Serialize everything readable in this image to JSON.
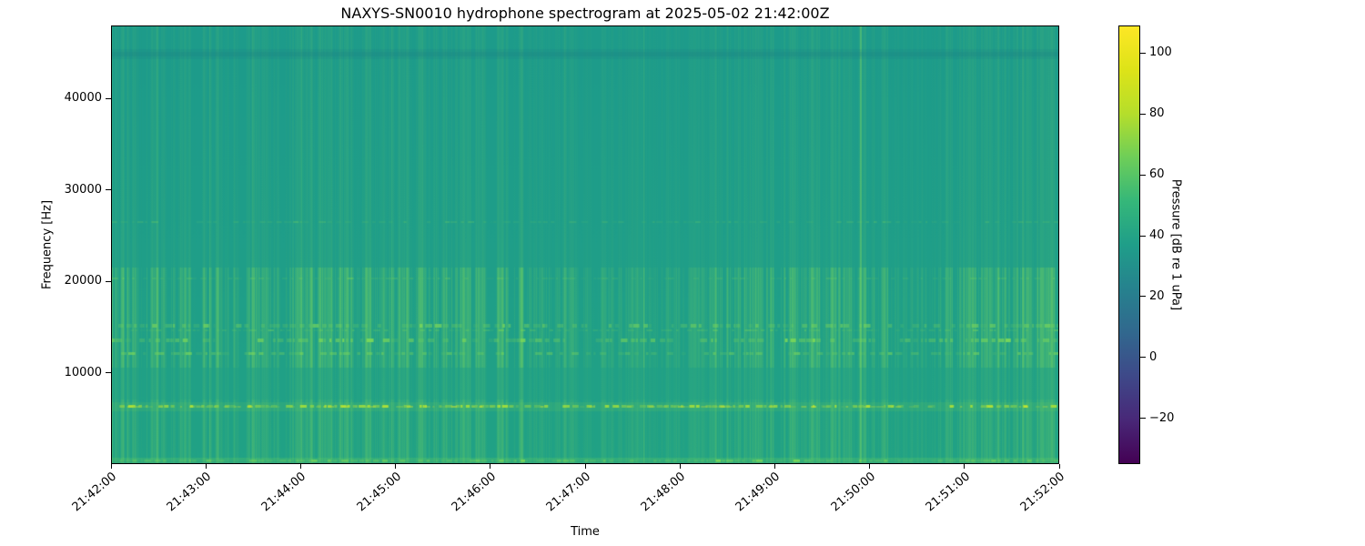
{
  "chart_data": {
    "type": "heatmap",
    "subtype": "spectrogram",
    "title": "NAXYS-SN0010 hydrophone spectrogram at 2025-05-02 21:42:00Z",
    "xlabel": "Time",
    "ylabel": "Frequency [Hz]",
    "x_tick_labels": [
      "21:42:00",
      "21:43:00",
      "21:44:00",
      "21:45:00",
      "21:46:00",
      "21:47:00",
      "21:48:00",
      "21:49:00",
      "21:50:00",
      "21:51:00",
      "21:52:00"
    ],
    "x_range_s": [
      0,
      600
    ],
    "y_tick_labels": [
      "10000",
      "20000",
      "30000",
      "40000"
    ],
    "y_ticks_hz": [
      10000,
      20000,
      30000,
      40000
    ],
    "y_range_hz": [
      0,
      48000
    ],
    "grid": false,
    "colorbar": {
      "label": "Pressure [dB re 1 uPa]",
      "ticks": [
        100,
        80,
        60,
        40,
        20,
        0,
        -20
      ],
      "range_db": [
        -35,
        109
      ],
      "colormap": "viridis",
      "stops": [
        "#440154",
        "#482878",
        "#3e4989",
        "#31688e",
        "#26828e",
        "#1f9e89",
        "#35b779",
        "#6ece58",
        "#b5de2b",
        "#dde318",
        "#fde725"
      ]
    },
    "background_db": 38,
    "background_color": "#1f9e89",
    "stripe_color": "#7ad65c",
    "tonal_bands": [
      {
        "freq_hz": 6300,
        "level_db": 78,
        "kind": "strong-tonal",
        "strength": 1.0
      },
      {
        "freq_hz": 12100,
        "level_db": 58,
        "kind": "tonal",
        "strength": 0.5
      },
      {
        "freq_hz": 13600,
        "level_db": 60,
        "kind": "tonal",
        "strength": 0.65
      },
      {
        "freq_hz": 14600,
        "level_db": 52,
        "kind": "faint-tonal",
        "strength": 0.3
      },
      {
        "freq_hz": 15200,
        "level_db": 58,
        "kind": "tonal",
        "strength": 0.55
      },
      {
        "freq_hz": 20300,
        "level_db": 48,
        "kind": "faint-tonal",
        "strength": 0.25
      },
      {
        "freq_hz": 26500,
        "level_db": 45,
        "kind": "faint-tonal",
        "strength": 0.22
      },
      {
        "freq_hz": 45000,
        "level_db": 30,
        "kind": "notch",
        "strength": 0.35
      },
      {
        "freq_hz": 300,
        "level_db": 62,
        "kind": "seafloor-band",
        "strength": 0.55
      }
    ],
    "broadband_events_s": [
      28,
      62,
      89,
      120,
      177,
      197,
      235,
      287,
      337,
      419,
      474,
      529,
      577
    ],
    "strongest_event_s": 474,
    "quiet_periods_s": [
      [
        278,
        378
      ],
      [
        492,
        523
      ]
    ],
    "noise_character": "dense vertical broadband striping, strongest 10-21 kHz and below 7 kHz"
  }
}
